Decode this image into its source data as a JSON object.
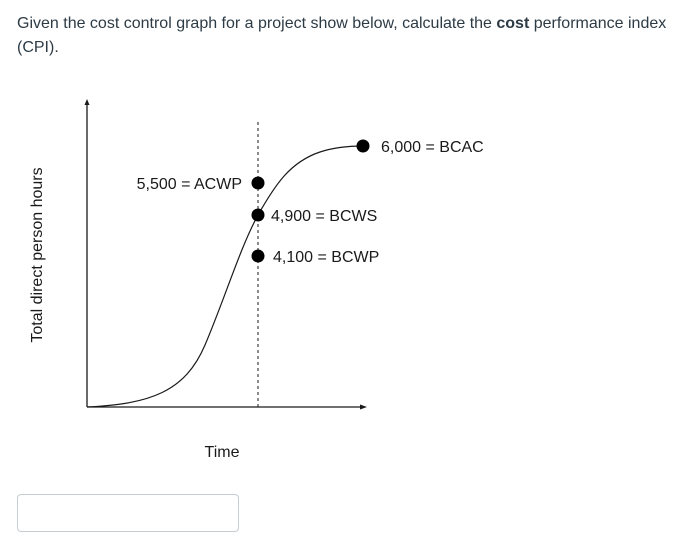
{
  "question": {
    "text_before": "Given the cost control graph for a project show below, calculate the ",
    "bold_word": "cost",
    "text_after": " performance index (CPI)."
  },
  "graph": {
    "y_axis_label": "Total direct person hours",
    "x_axis_label": "Time",
    "points": [
      {
        "label": "6,000 = BCAC"
      },
      {
        "label": "5,500 = ACWP"
      },
      {
        "label": "4,900 = BCWS"
      },
      {
        "label": "4,100 = BCWP"
      }
    ]
  },
  "answer": {
    "value": "",
    "placeholder": ""
  }
}
